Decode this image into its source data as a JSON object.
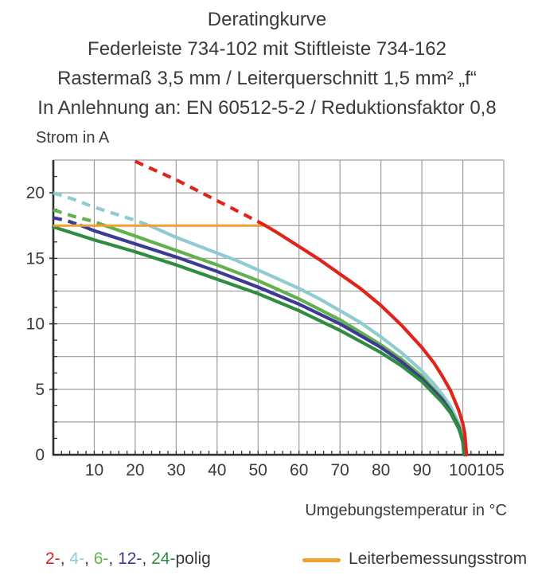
{
  "title": {
    "lines": [
      "Deratingkurve",
      "Federleiste 734-102 mit Stiftleiste 734-162",
      "Rastermaß 3,5 mm / Leiterquerschnitt 1,5 mm² „f“",
      "In Anlehnung an: EN 60512-5-2 / Reduktionsfaktor 0,8"
    ]
  },
  "chart_data": {
    "type": "line",
    "title": "Deratingkurve Federleiste 734-102 mit Stiftleiste 734-162",
    "xlabel": "Umgebungstemperatur in °C",
    "ylabel": "Strom in A",
    "xlim": [
      0,
      110
    ],
    "ylim": [
      0,
      22.5
    ],
    "grid": true,
    "x_grid_step": 10,
    "y_grid_step": 2.5,
    "x_minor_tick_step": 2,
    "y_minor_tick_step": 1.25,
    "x_tick_labels": [
      10,
      20,
      30,
      40,
      50,
      60,
      70,
      80,
      90,
      100,
      105
    ],
    "y_tick_labels": [
      0,
      5,
      10,
      15,
      20
    ],
    "colors": {
      "grid": "#9d9d9d",
      "axis": "#2f2f2e",
      "text": "#3a3a39"
    },
    "rated_current_line": {
      "label": "Leiterbemessungsstrom",
      "color": "#f0a02e",
      "y": 17.5,
      "x_start": 0,
      "x_end": 51.8
    },
    "series": [
      {
        "name": "2-polig",
        "color": "#e0241b",
        "dashed_until": 51.8,
        "points": [
          [
            20,
            22.4
          ],
          [
            25,
            21.7
          ],
          [
            30,
            21.0
          ],
          [
            35,
            20.2
          ],
          [
            40,
            19.4
          ],
          [
            45,
            18.6
          ],
          [
            50,
            17.8
          ],
          [
            51.8,
            17.5
          ],
          [
            55,
            16.9
          ],
          [
            60,
            15.9
          ],
          [
            65,
            14.9
          ],
          [
            70,
            13.8
          ],
          [
            75,
            12.7
          ],
          [
            80,
            11.4
          ],
          [
            85,
            9.9
          ],
          [
            90,
            8.2
          ],
          [
            93,
            7.0
          ],
          [
            95,
            6.0
          ],
          [
            97,
            4.9
          ],
          [
            99,
            3.4
          ],
          [
            100,
            2.4
          ],
          [
            100.5,
            1.6
          ],
          [
            100.9,
            0
          ]
        ]
      },
      {
        "name": "4-polig",
        "color": "#8fcbd1",
        "dashed_until": 23.5,
        "points": [
          [
            0,
            20.0
          ],
          [
            5,
            19.5
          ],
          [
            10,
            18.9
          ],
          [
            15,
            18.4
          ],
          [
            20,
            17.9
          ],
          [
            23.5,
            17.5
          ],
          [
            30,
            16.6
          ],
          [
            35,
            16.0
          ],
          [
            40,
            15.4
          ],
          [
            45,
            14.8
          ],
          [
            50,
            14.1
          ],
          [
            55,
            13.4
          ],
          [
            60,
            12.7
          ],
          [
            65,
            11.9
          ],
          [
            70,
            11.0
          ],
          [
            75,
            10.1
          ],
          [
            80,
            9.0
          ],
          [
            85,
            7.8
          ],
          [
            90,
            6.4
          ],
          [
            93,
            5.4
          ],
          [
            95,
            4.6
          ],
          [
            97,
            3.7
          ],
          [
            99,
            2.4
          ],
          [
            100,
            1.3
          ],
          [
            100.4,
            0
          ]
        ]
      },
      {
        "name": "6-polig",
        "color": "#63b14e",
        "dashed_until": 12.6,
        "points": [
          [
            0,
            18.7
          ],
          [
            5,
            18.2
          ],
          [
            10,
            17.8
          ],
          [
            12.6,
            17.5
          ],
          [
            20,
            16.7
          ],
          [
            30,
            15.6
          ],
          [
            40,
            14.5
          ],
          [
            50,
            13.3
          ],
          [
            60,
            11.9
          ],
          [
            70,
            10.3
          ],
          [
            80,
            8.4
          ],
          [
            85,
            7.3
          ],
          [
            90,
            6.0
          ],
          [
            95,
            4.3
          ],
          [
            97,
            3.4
          ],
          [
            99,
            2.2
          ],
          [
            100,
            1.2
          ],
          [
            100.4,
            0
          ]
        ]
      },
      {
        "name": "12-polig",
        "color": "#3b3a95",
        "dashed_until": 6.8,
        "points": [
          [
            0,
            18.1
          ],
          [
            3,
            17.9
          ],
          [
            6.8,
            17.5
          ],
          [
            10,
            17.1
          ],
          [
            20,
            16.1
          ],
          [
            30,
            15.1
          ],
          [
            40,
            14.0
          ],
          [
            50,
            12.8
          ],
          [
            60,
            11.5
          ],
          [
            70,
            10.0
          ],
          [
            80,
            8.2
          ],
          [
            85,
            7.1
          ],
          [
            90,
            5.8
          ],
          [
            95,
            4.2
          ],
          [
            97,
            3.3
          ],
          [
            99,
            2.1
          ],
          [
            100,
            1.0
          ],
          [
            100.3,
            0
          ]
        ]
      },
      {
        "name": "24-polig",
        "color": "#2f8c41",
        "dashed_until": null,
        "points": [
          [
            0,
            17.4
          ],
          [
            10,
            16.4
          ],
          [
            20,
            15.5
          ],
          [
            30,
            14.5
          ],
          [
            40,
            13.4
          ],
          [
            50,
            12.3
          ],
          [
            60,
            11.0
          ],
          [
            70,
            9.5
          ],
          [
            80,
            7.8
          ],
          [
            85,
            6.8
          ],
          [
            90,
            5.6
          ],
          [
            95,
            4.0
          ],
          [
            97,
            3.2
          ],
          [
            99,
            2.0
          ],
          [
            100,
            1.1
          ],
          [
            100.4,
            0
          ]
        ]
      }
    ],
    "legend": {
      "poles_spans": [
        {
          "text": "2-",
          "color": "#e0241b"
        },
        {
          "text": ", ",
          "color": "#3a3a39"
        },
        {
          "text": "4-",
          "color": "#8fcbd1"
        },
        {
          "text": ", ",
          "color": "#3a3a39"
        },
        {
          "text": "6-",
          "color": "#63b14e"
        },
        {
          "text": ", ",
          "color": "#3a3a39"
        },
        {
          "text": "12-",
          "color": "#3b3a95"
        },
        {
          "text": ", ",
          "color": "#3a3a39"
        },
        {
          "text": "24-",
          "color": "#2f8c41"
        },
        {
          "text": "polig",
          "color": "#3a3a39"
        }
      ],
      "rated_label": "Leiterbemessungsstrom"
    }
  }
}
